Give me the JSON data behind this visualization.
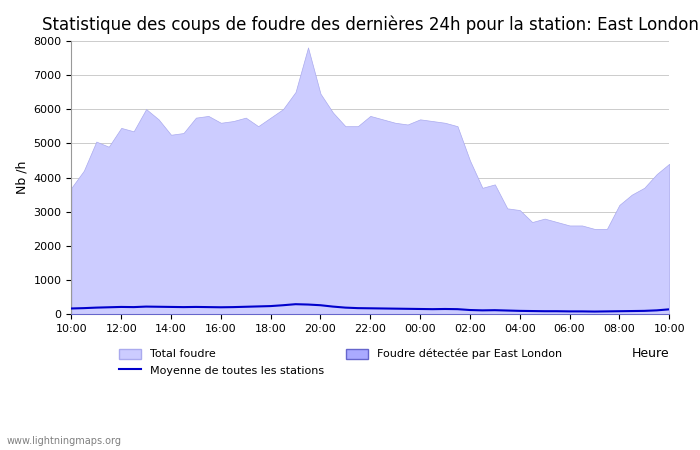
{
  "title": "Statistique des coups de foudre des dernières 24h pour la station: East London",
  "xlabel": "Heure",
  "ylabel": "Nb /h",
  "watermark": "www.lightningmaps.org",
  "xlim": [
    0,
    24
  ],
  "ylim": [
    0,
    8000
  ],
  "yticks": [
    0,
    1000,
    2000,
    3000,
    4000,
    5000,
    6000,
    7000,
    8000
  ],
  "xtick_labels": [
    "10:00",
    "12:00",
    "14:00",
    "16:00",
    "18:00",
    "20:00",
    "22:00",
    "00:00",
    "02:00",
    "04:00",
    "06:00",
    "08:00",
    "10:00"
  ],
  "total_foudre_color": "#ccccff",
  "total_foudre_edge": "#aaaaee",
  "detected_color": "#aaaaff",
  "detected_edge": "#6666cc",
  "mean_line_color": "#0000cc",
  "background_color": "#ffffff",
  "grid_color": "#cccccc",
  "title_fontsize": 12,
  "total_foudre_x": [
    0,
    0.5,
    1,
    1.5,
    2,
    2.5,
    3,
    3.5,
    4,
    4.5,
    5,
    5.5,
    6,
    6.5,
    7,
    7.5,
    8,
    8.5,
    9,
    9.5,
    10,
    10.5,
    11,
    11.5,
    12,
    12.5,
    13,
    13.5,
    14,
    14.5,
    15,
    15.5,
    16,
    16.5,
    17,
    17.5,
    18,
    18.5,
    19,
    19.5,
    20,
    20.5,
    21,
    21.5,
    22,
    22.5,
    23,
    23.5,
    24
  ],
  "total_foudre_y": [
    3700,
    4200,
    5050,
    4900,
    5450,
    5350,
    6000,
    5700,
    5250,
    5300,
    5750,
    5800,
    5600,
    5650,
    5750,
    5500,
    5750,
    6000,
    6500,
    7800,
    6450,
    5900,
    5500,
    5500,
    5800,
    5700,
    5600,
    5550,
    5700,
    5650,
    5600,
    5500,
    4500,
    3700,
    3800,
    3100,
    3050,
    2700,
    2800,
    2700,
    2600,
    2600,
    2500,
    2500,
    3200,
    3500,
    3700,
    4100,
    4400
  ],
  "detected_foudre_x": [
    0,
    0.5,
    1,
    1.5,
    2,
    2.5,
    3,
    3.5,
    4,
    4.5,
    5,
    5.5,
    6,
    6.5,
    7,
    7.5,
    8,
    8.5,
    9,
    9.5,
    10,
    10.5,
    11,
    11.5,
    12,
    12.5,
    13,
    13.5,
    14,
    14.5,
    15,
    15.5,
    16,
    16.5,
    17,
    17.5,
    18,
    18.5,
    19,
    19.5,
    20,
    20.5,
    21,
    21.5,
    22,
    22.5,
    23,
    23.5,
    24
  ],
  "detected_foudre_y": [
    0,
    0,
    0,
    0,
    0,
    0,
    0,
    0,
    0,
    0,
    0,
    0,
    0,
    0,
    0,
    0,
    0,
    0,
    0,
    0,
    0,
    0,
    0,
    0,
    0,
    0,
    0,
    0,
    0,
    0,
    0,
    0,
    0,
    0,
    0,
    0,
    0,
    0,
    0,
    0,
    0,
    0,
    0,
    0,
    0,
    0,
    0,
    0,
    0
  ],
  "mean_line_x": [
    0,
    0.5,
    1,
    1.5,
    2,
    2.5,
    3,
    3.5,
    4,
    4.5,
    5,
    5.5,
    6,
    6.5,
    7,
    7.5,
    8,
    8.5,
    9,
    9.5,
    10,
    10.5,
    11,
    11.5,
    12,
    12.5,
    13,
    13.5,
    14,
    14.5,
    15,
    15.5,
    16,
    16.5,
    17,
    17.5,
    18,
    18.5,
    19,
    19.5,
    20,
    20.5,
    21,
    21.5,
    22,
    22.5,
    23,
    23.5,
    24
  ],
  "mean_line_y": [
    175,
    185,
    200,
    210,
    220,
    215,
    230,
    225,
    220,
    215,
    220,
    215,
    210,
    215,
    225,
    235,
    245,
    270,
    300,
    290,
    270,
    230,
    200,
    185,
    180,
    175,
    170,
    165,
    160,
    155,
    160,
    155,
    130,
    120,
    125,
    115,
    105,
    100,
    95,
    95,
    90,
    90,
    85,
    90,
    95,
    100,
    105,
    120,
    150
  ]
}
